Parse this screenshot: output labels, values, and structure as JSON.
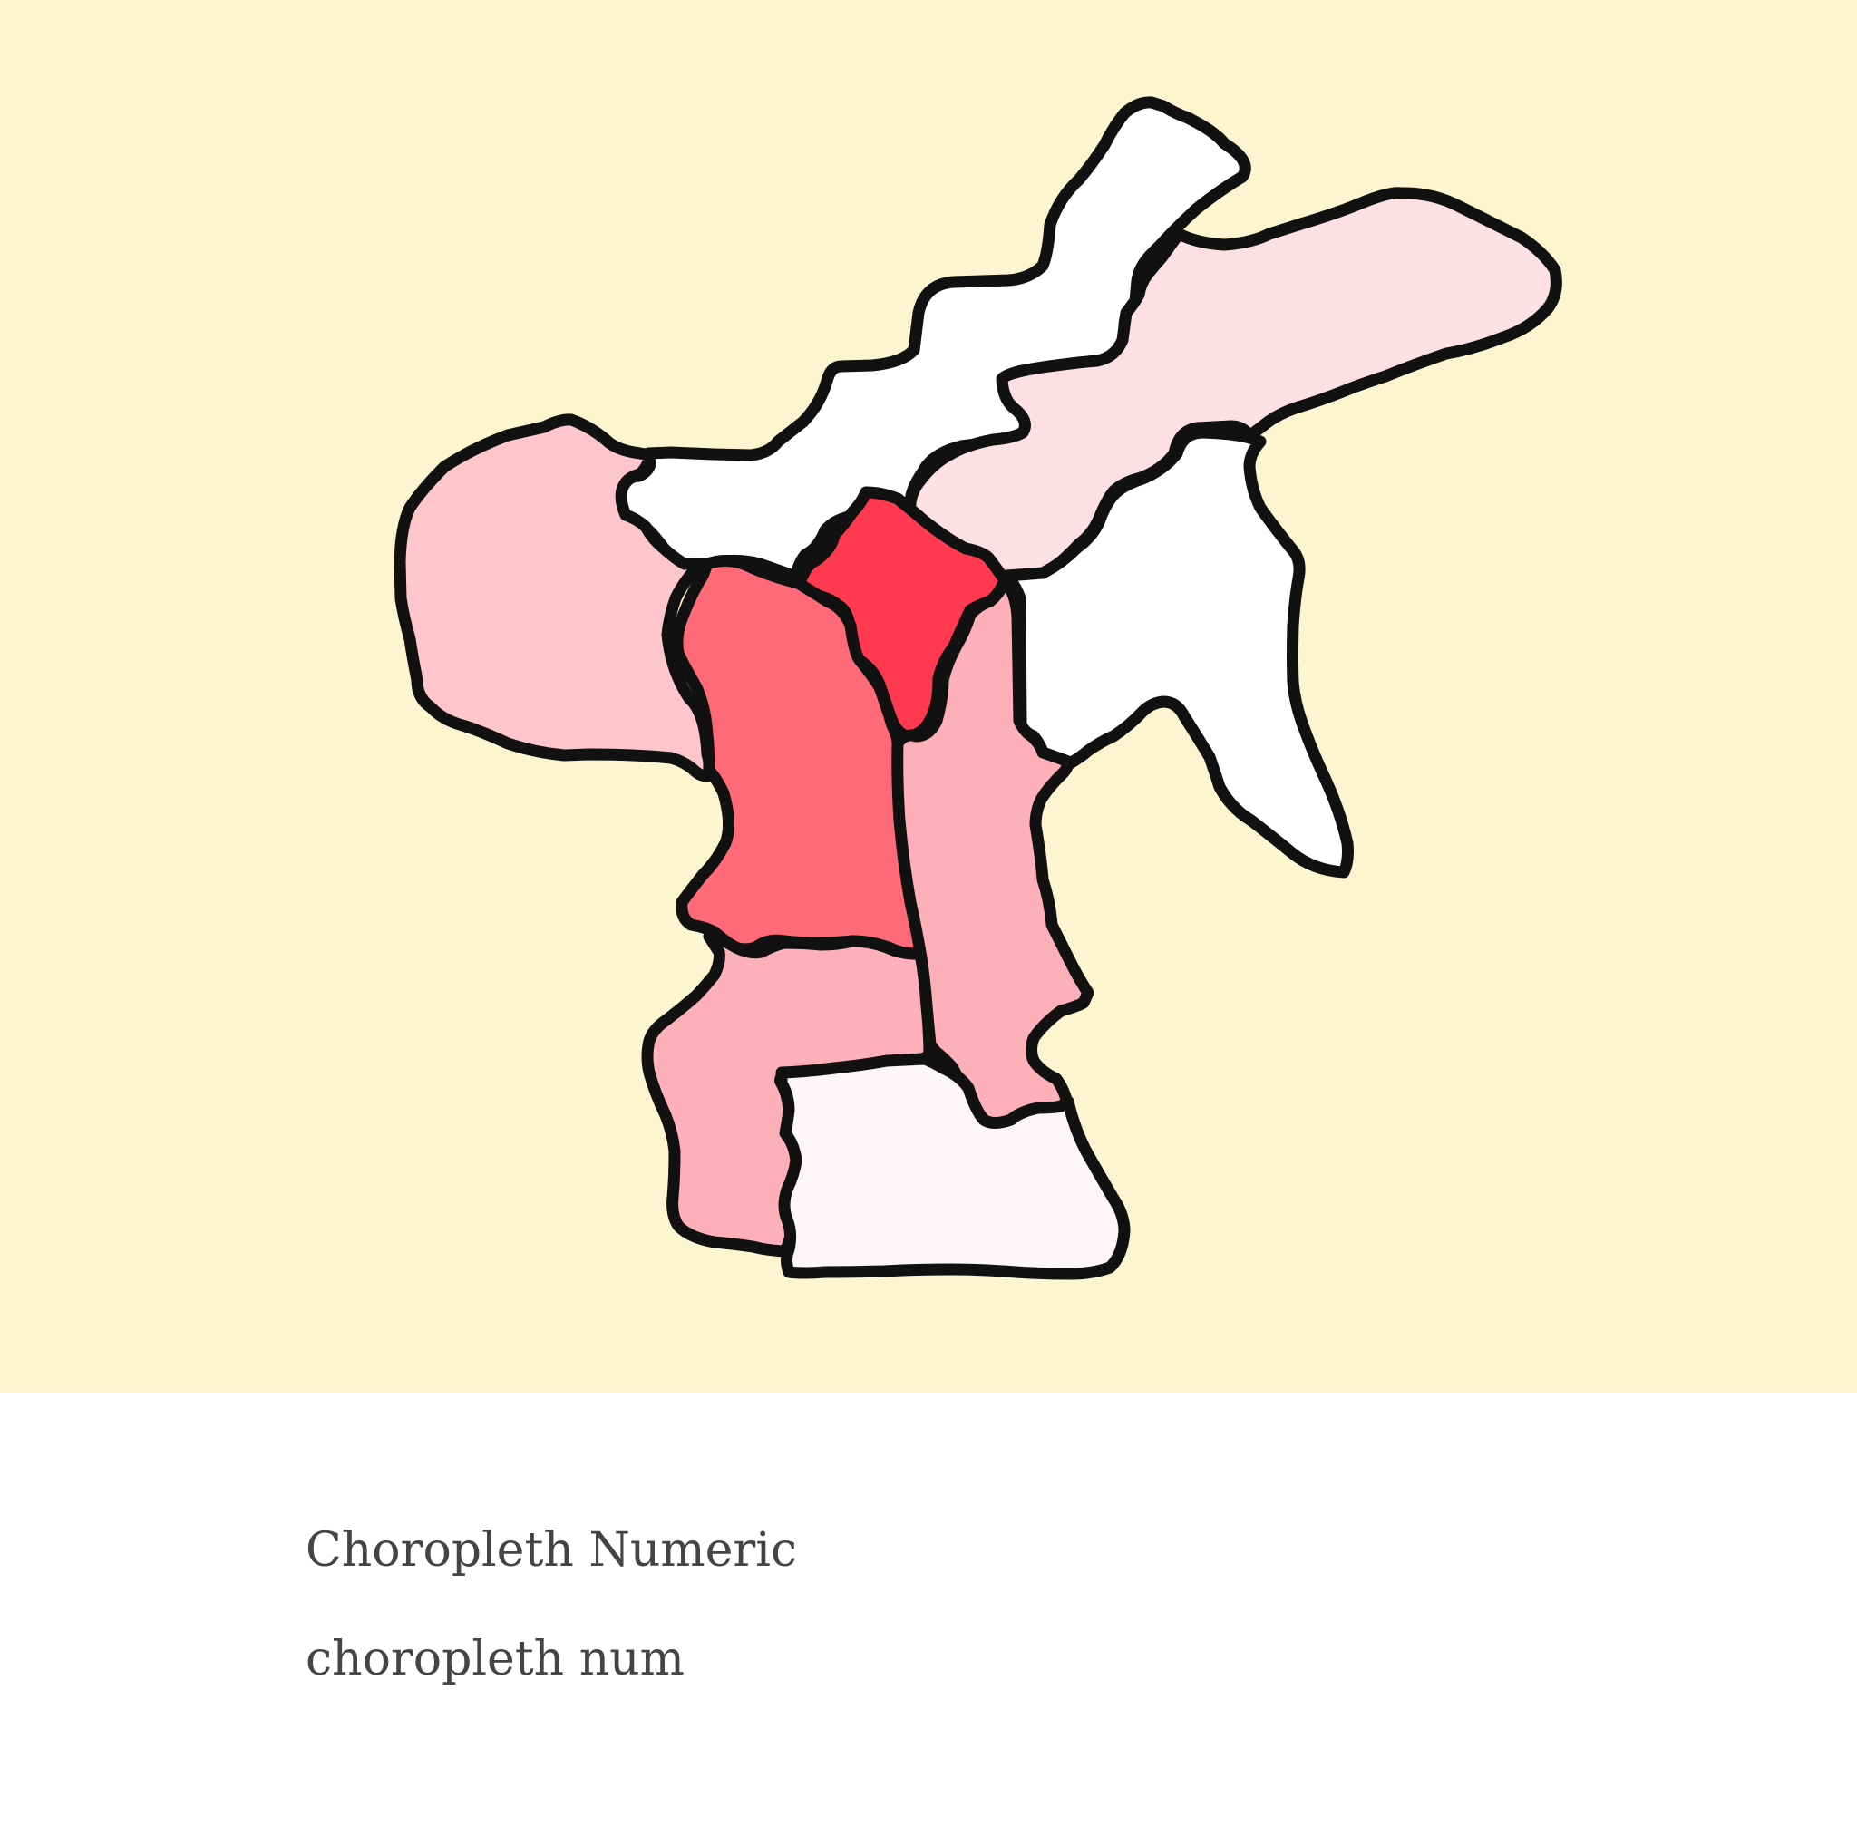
{
  "caption": {
    "title": "Choropleth Numeric",
    "subtitle": "choropleth num"
  },
  "colors": {
    "background": "#fdf5cf",
    "border": "#111111",
    "text": "#444444"
  },
  "chart_data": {
    "type": "choropleth",
    "title": "Choropleth Numeric",
    "subtitle": "choropleth num",
    "scale": "numeric, white to red",
    "regions": [
      {
        "id": "north-band",
        "fill": "#ffffff"
      },
      {
        "id": "northeast-arm",
        "fill": "#fde0e3"
      },
      {
        "id": "east-lobe",
        "fill": "#ffffff"
      },
      {
        "id": "west-lobe",
        "fill": "#fec6cb"
      },
      {
        "id": "central-peak",
        "fill": "#ff3a50"
      },
      {
        "id": "center-west",
        "fill": "#ff6a78"
      },
      {
        "id": "center-east",
        "fill": "#feb0b8"
      },
      {
        "id": "south-west",
        "fill": "#feb0b8"
      },
      {
        "id": "south-east",
        "fill": "#fdf5f6"
      }
    ]
  }
}
